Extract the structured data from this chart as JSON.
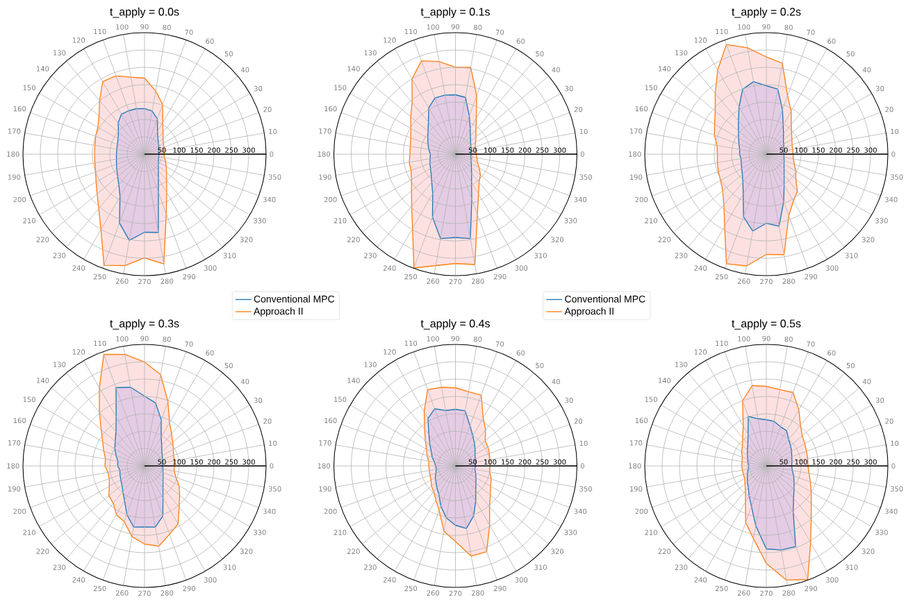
{
  "chart_data": [
    {
      "type": "radar",
      "title": "t_apply = 0.0s",
      "categories": [
        "90",
        "80",
        "70",
        "60",
        "50",
        "40",
        "30",
        "20",
        "10",
        "0",
        "350",
        "340",
        "330",
        "320",
        "310",
        "300",
        "290",
        "280",
        "270",
        "260",
        "250",
        "240",
        "230",
        "220",
        "210",
        "200",
        "190",
        "180",
        "170",
        "160",
        "150",
        "140",
        "130",
        "120",
        "110",
        "100"
      ],
      "ylim": [
        0,
        350
      ],
      "yticks": [
        50,
        100,
        150,
        200,
        250,
        300
      ],
      "grid": true,
      "legend": "bottom right",
      "series": [
        {
          "name": "Conventional MPC",
          "color": "#1f77b4",
          "values": [
            131,
            126,
            108,
            75,
            60,
            52,
            47,
            44,
            42,
            41,
            42,
            43,
            46,
            52,
            62,
            80,
            117,
            229,
            225,
            252,
            211,
            141,
            115,
            101,
            92,
            86,
            82,
            81,
            81,
            83,
            88,
            98,
            118,
            133,
            133,
            133
          ]
        },
        {
          "name": "Approach II",
          "color": "#ff7f0e",
          "values": [
            219,
            185,
            152,
            105,
            83,
            70,
            63,
            59,
            57,
            56,
            58,
            65,
            72,
            83,
            99,
            128,
            183,
            321,
            299,
            326,
            341,
            251,
            205,
            178,
            161,
            150,
            145,
            144,
            145,
            150,
            155,
            171,
            201,
            241,
            240,
            225
          ]
        }
      ]
    },
    {
      "type": "radar",
      "title": "t_apply = 0.1s",
      "categories": [
        "90",
        "80",
        "70",
        "60",
        "50",
        "40",
        "30",
        "20",
        "10",
        "0",
        "350",
        "340",
        "330",
        "320",
        "310",
        "300",
        "290",
        "280",
        "270",
        "260",
        "250",
        "240",
        "230",
        "220",
        "210",
        "200",
        "190",
        "180",
        "170",
        "160",
        "150",
        "140",
        "130",
        "120",
        "110",
        "100"
      ],
      "ylim": [
        0,
        350
      ],
      "yticks": [
        50,
        100,
        150,
        200,
        250,
        300
      ],
      "grid": true,
      "legend": "bottom right",
      "series": [
        {
          "name": "Conventional MPC",
          "color": "#1f77b4",
          "values": [
            171,
            166,
            117,
            85,
            67,
            57,
            51,
            48,
            45,
            45,
            45,
            48,
            53,
            60,
            73,
            93,
            138,
            247,
            240,
            247,
            193,
            131,
            106,
            91,
            83,
            78,
            74,
            72,
            78,
            84,
            92,
            103,
            121,
            154,
            172,
            173
          ]
        },
        {
          "name": "Approach II",
          "color": "#ff7f0e",
          "values": [
            250,
            254,
            179,
            120,
            92,
            77,
            67,
            61,
            59,
            60,
            63,
            67,
            79,
            94,
            106,
            133,
            185,
            323,
            315,
            326,
            349,
            247,
            196,
            165,
            146,
            136,
            135,
            131,
            132,
            137,
            148,
            168,
            194,
            250,
            286,
            271
          ]
        }
      ]
    },
    {
      "type": "radar",
      "title": "t_apply = 0.2s",
      "categories": [
        "90",
        "80",
        "70",
        "60",
        "50",
        "40",
        "30",
        "20",
        "10",
        "0",
        "350",
        "340",
        "330",
        "320",
        "310",
        "300",
        "290",
        "280",
        "270",
        "260",
        "250",
        "240",
        "230",
        "220",
        "210",
        "200",
        "190",
        "180",
        "170",
        "160",
        "150",
        "140",
        "130",
        "120",
        "110",
        "100"
      ],
      "ylim": [
        0,
        350
      ],
      "yticks": [
        50,
        100,
        150,
        200,
        250,
        300
      ],
      "grid": true,
      "series": [
        {
          "color": "#1f77b4",
          "values": [
            197,
            190,
            136,
            97,
            77,
            64,
            58,
            53,
            51,
            51,
            52,
            55,
            59,
            67,
            80,
            103,
            146,
            211,
            199,
            225,
            192,
            133,
            105,
            90,
            82,
            77,
            74,
            77,
            78,
            84,
            92,
            105,
            125,
            157,
            199,
            212
          ]
        },
        {
          "color": "#ff7f0e",
          "values": [
            280,
            266,
            179,
            143,
            112,
            95,
            85,
            79,
            77,
            77,
            79,
            86,
            98,
            111,
            139,
            156,
            189,
            294,
            289,
            327,
            336,
            240,
            190,
            164,
            152,
            147,
            143,
            141,
            144,
            159,
            172,
            192,
            229,
            280,
            336,
            311
          ]
        }
      ]
    },
    {
      "type": "radar",
      "title": "t_apply = 0.3s",
      "categories": [
        "90",
        "80",
        "70",
        "60",
        "50",
        "40",
        "30",
        "20",
        "10",
        "0",
        "350",
        "340",
        "330",
        "320",
        "310",
        "300",
        "290",
        "280",
        "270",
        "260",
        "250",
        "240",
        "230",
        "220",
        "210",
        "200",
        "190",
        "180",
        "170",
        "160",
        "150",
        "140",
        "130",
        "120",
        "110",
        "100"
      ],
      "ylim": [
        0,
        350
      ],
      "yticks": [
        50,
        100,
        150,
        200,
        250,
        300
      ],
      "grid": true,
      "series": [
        {
          "color": "#1f77b4",
          "values": [
            201,
            184,
            141,
            96,
            77,
            65,
            59,
            55,
            53,
            52,
            54,
            57,
            62,
            70,
            83,
            107,
            154,
            179,
            176,
            179,
            149,
            115,
            97,
            85,
            79,
            75,
            72,
            77,
            78,
            87,
            99,
            110,
            128,
            163,
            240,
            230
          ]
        },
        {
          "color": "#ff7f0e",
          "values": [
            299,
            267,
            197,
            144,
            121,
            106,
            96,
            89,
            87,
            86,
            87,
            96,
            115,
            132,
            155,
            193,
            210,
            235,
            225,
            207,
            171,
            162,
            140,
            134,
            117,
            108,
            107,
            114,
            114,
            125,
            139,
            163,
            202,
            260,
            342,
            326
          ]
        }
      ]
    },
    {
      "type": "radar",
      "title": "t_apply = 0.4s",
      "categories": [
        "90",
        "80",
        "70",
        "60",
        "50",
        "40",
        "30",
        "20",
        "10",
        "0",
        "350",
        "340",
        "330",
        "320",
        "310",
        "300",
        "290",
        "280",
        "270",
        "260",
        "250",
        "240",
        "230",
        "220",
        "210",
        "200",
        "190",
        "180",
        "170",
        "160",
        "150",
        "140",
        "130",
        "120",
        "110",
        "100"
      ],
      "ylim": [
        0,
        350
      ],
      "yticks": [
        50,
        100,
        150,
        200,
        250,
        300
      ],
      "grid": true,
      "series": [
        {
          "color": "#1f77b4",
          "values": [
            163,
            161,
            123,
            100,
            85,
            74,
            65,
            61,
            58,
            58,
            57,
            62,
            68,
            77,
            91,
            117,
            153,
            183,
            171,
            152,
            123,
            95,
            83,
            73,
            67,
            60,
            56,
            57,
            61,
            71,
            80,
            96,
            119,
            158,
            175,
            162
          ]
        },
        {
          "color": "#ff7f0e",
          "values": [
            225,
            217,
            217,
            160,
            135,
            112,
            108,
            104,
            101,
            100,
            100,
            110,
            117,
            131,
            153,
            197,
            263,
            264,
            218,
            191,
            137,
            113,
            97,
            90,
            81,
            78,
            76,
            77,
            78,
            87,
            96,
            113,
            138,
            180,
            234,
            230
          ]
        }
      ]
    },
    {
      "type": "radar",
      "title": "t_apply = 0.5s",
      "categories": [
        "90",
        "80",
        "70",
        "60",
        "50",
        "40",
        "30",
        "20",
        "10",
        "0",
        "350",
        "340",
        "330",
        "320",
        "310",
        "300",
        "290",
        "280",
        "270",
        "260",
        "250",
        "240",
        "230",
        "220",
        "210",
        "200",
        "190",
        "180",
        "170",
        "160",
        "150",
        "140",
        "130",
        "120",
        "110",
        "100"
      ],
      "ylim": [
        0,
        350
      ],
      "yticks": [
        50,
        100,
        150,
        200,
        250,
        300
      ],
      "grid": true,
      "series": [
        {
          "color": "#1f77b4",
          "values": [
            133,
            130,
            120,
            117,
            100,
            91,
            84,
            78,
            75,
            73,
            76,
            84,
            92,
            104,
            122,
            155,
            247,
            246,
            239,
            175,
            125,
            99,
            81,
            71,
            63,
            58,
            53,
            51,
            54,
            57,
            63,
            71,
            83,
            105,
            152,
            138
          ]
        },
        {
          "color": "#ff7f0e",
          "values": [
            229,
            223,
            225,
            187,
            153,
            135,
            128,
            123,
            121,
            120,
            125,
            135,
            149,
            169,
            201,
            255,
            348,
            334,
            281,
            213,
            174,
            120,
            94,
            80,
            72,
            70,
            70,
            71,
            71,
            74,
            82,
            90,
            106,
            133,
            200,
            235
          ]
        }
      ]
    }
  ]
}
